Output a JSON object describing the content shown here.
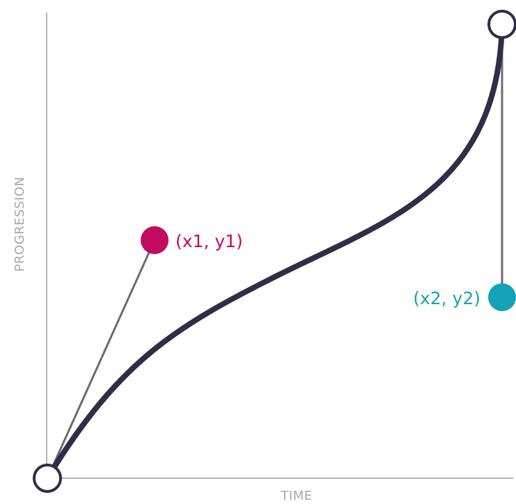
{
  "axes": {
    "x_label": "TIME",
    "y_label": "PROGRESSION"
  },
  "control_points": {
    "p1": {
      "label": "(x1, y1)",
      "color": "#c20a5f"
    },
    "p2": {
      "label": "(x2, y2)",
      "color": "#15a2b5"
    }
  },
  "colors": {
    "curve": "#2f2e48",
    "handle_line": "#6b6b6b",
    "axis": "#b3b3b3",
    "axis_label": "#a8a8a8",
    "endpoint_stroke": "#2f2e48",
    "endpoint_fill": "#ffffff"
  }
}
